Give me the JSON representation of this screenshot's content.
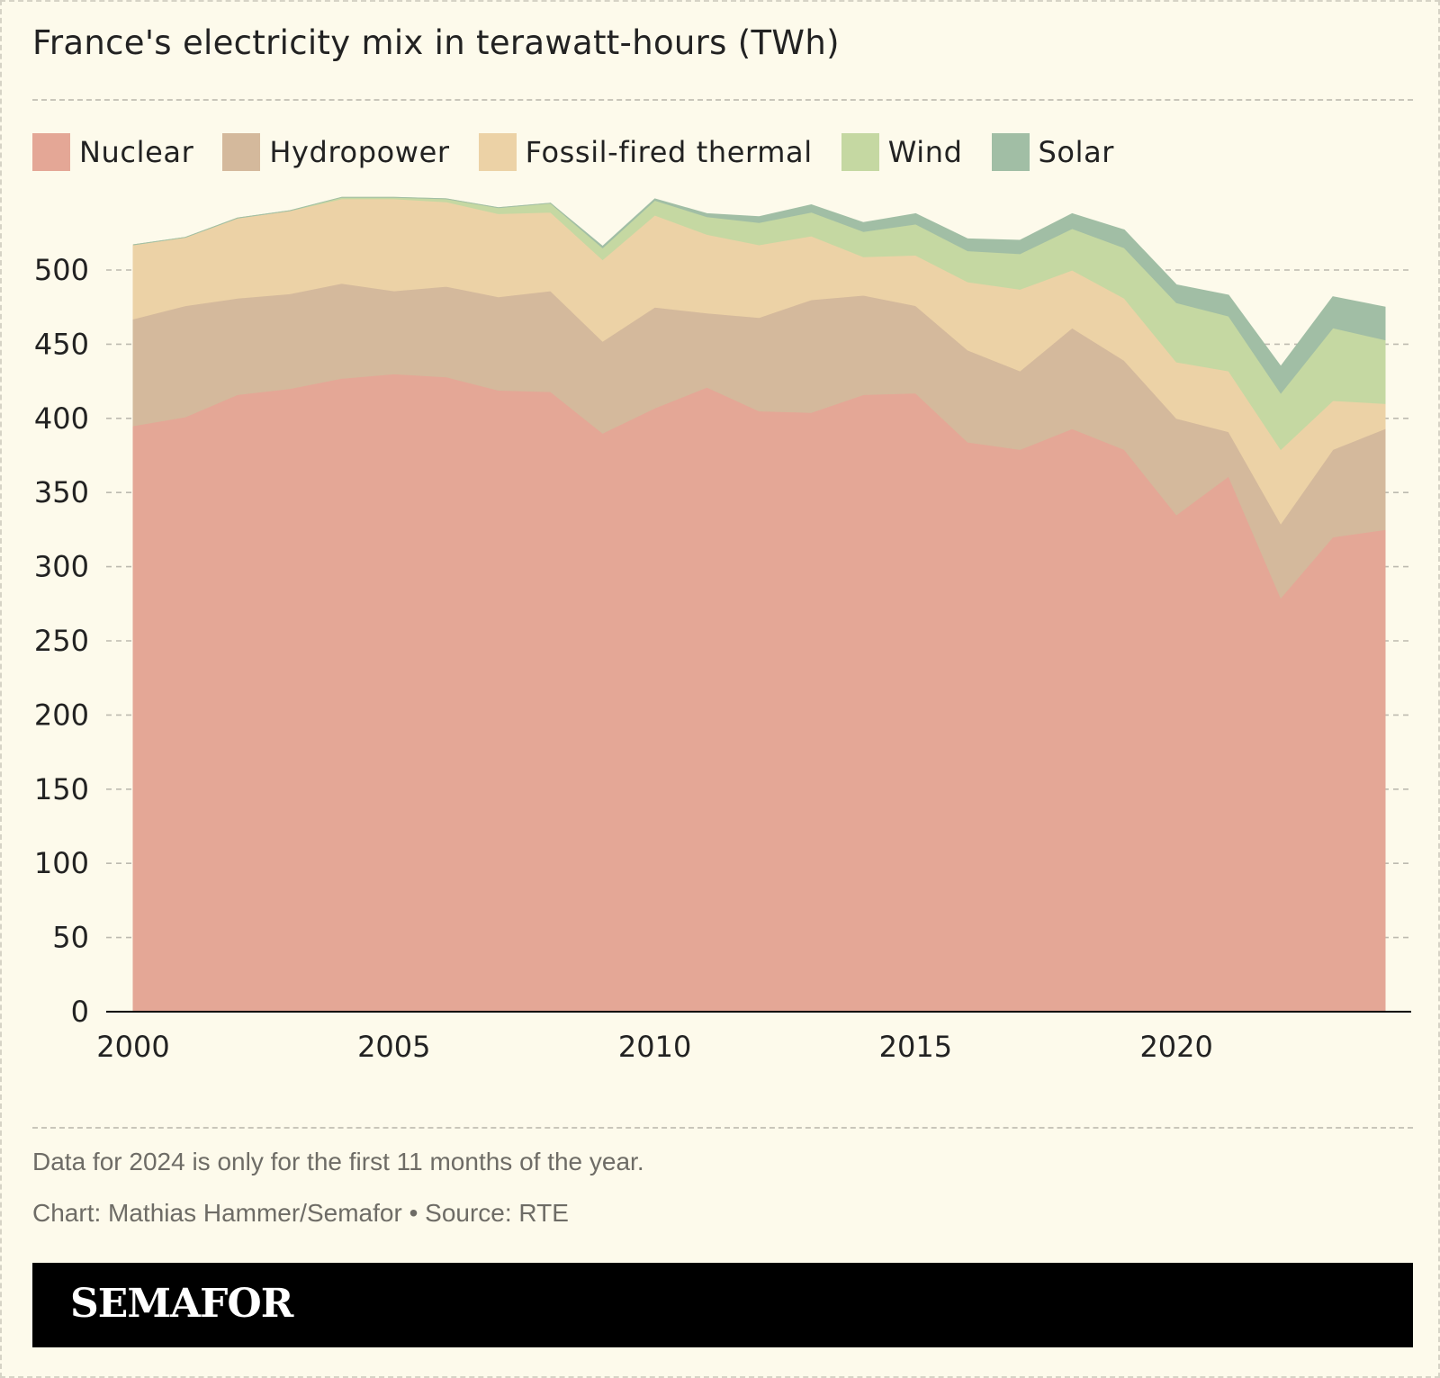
{
  "title": "France's electricity mix in terawatt-hours (TWh)",
  "legend": [
    {
      "label": "Nuclear",
      "color": "#e4a796"
    },
    {
      "label": "Hydropower",
      "color": "#d4b99c"
    },
    {
      "label": "Fossil-fired thermal",
      "color": "#ecd2a6"
    },
    {
      "label": "Wind",
      "color": "#c5d8a2"
    },
    {
      "label": "Solar",
      "color": "#a1bea5"
    }
  ],
  "notes": {
    "data_note": "Data for 2024 is only for the first 11 months of the year.",
    "credit": "Chart: Mathias Hammer/Semafor • Source: RTE"
  },
  "brand": "SEMAFOR",
  "chart_data": {
    "type": "area",
    "stacked": true,
    "title": "France's electricity mix in terawatt-hours (TWh)",
    "xlabel": "",
    "ylabel": "",
    "x": [
      2000,
      2001,
      2002,
      2003,
      2004,
      2005,
      2006,
      2007,
      2008,
      2009,
      2010,
      2011,
      2012,
      2013,
      2014,
      2015,
      2016,
      2017,
      2018,
      2019,
      2020,
      2021,
      2022,
      2023,
      2024
    ],
    "xticks": [
      2000,
      2005,
      2010,
      2015,
      2020
    ],
    "yticks": [
      0,
      50,
      100,
      150,
      200,
      250,
      300,
      350,
      400,
      450,
      500
    ],
    "xlim": [
      2000,
      2024
    ],
    "ylim": [
      0,
      560
    ],
    "grid": true,
    "legend_position": "top-left",
    "series": [
      {
        "name": "Nuclear",
        "color": "#e4a796",
        "values": [
          395,
          401,
          416,
          420,
          427,
          430,
          428,
          419,
          418,
          390,
          407,
          421,
          405,
          404,
          416,
          417,
          384,
          379,
          393,
          379,
          335,
          361,
          279,
          320,
          325
        ]
      },
      {
        "name": "Hydropower",
        "color": "#d4b99c",
        "values": [
          72,
          75,
          65,
          64,
          64,
          56,
          61,
          63,
          68,
          62,
          68,
          50,
          63,
          76,
          67,
          59,
          62,
          53,
          68,
          60,
          65,
          30,
          50,
          59,
          68
        ]
      },
      {
        "name": "Fossil-fired thermal",
        "color": "#ecd2a6",
        "values": [
          50,
          46,
          54,
          56,
          57,
          62,
          57,
          56,
          53,
          55,
          62,
          53,
          49,
          43,
          26,
          34,
          46,
          55,
          39,
          42,
          38,
          41,
          50,
          33,
          17
        ]
      },
      {
        "name": "Wind",
        "color": "#c5d8a2",
        "values": [
          0,
          0,
          0,
          0,
          1,
          1,
          2,
          4,
          6,
          8,
          10,
          12,
          15,
          16,
          17,
          21,
          21,
          24,
          28,
          34,
          40,
          37,
          38,
          49,
          43
        ]
      },
      {
        "name": "Solar",
        "color": "#a1bea5",
        "values": [
          0,
          0,
          0,
          0,
          0,
          0,
          0,
          0,
          0,
          1,
          1,
          2,
          4,
          5,
          6,
          7,
          8,
          9,
          10,
          12,
          12,
          14,
          18,
          21,
          22
        ]
      }
    ]
  }
}
